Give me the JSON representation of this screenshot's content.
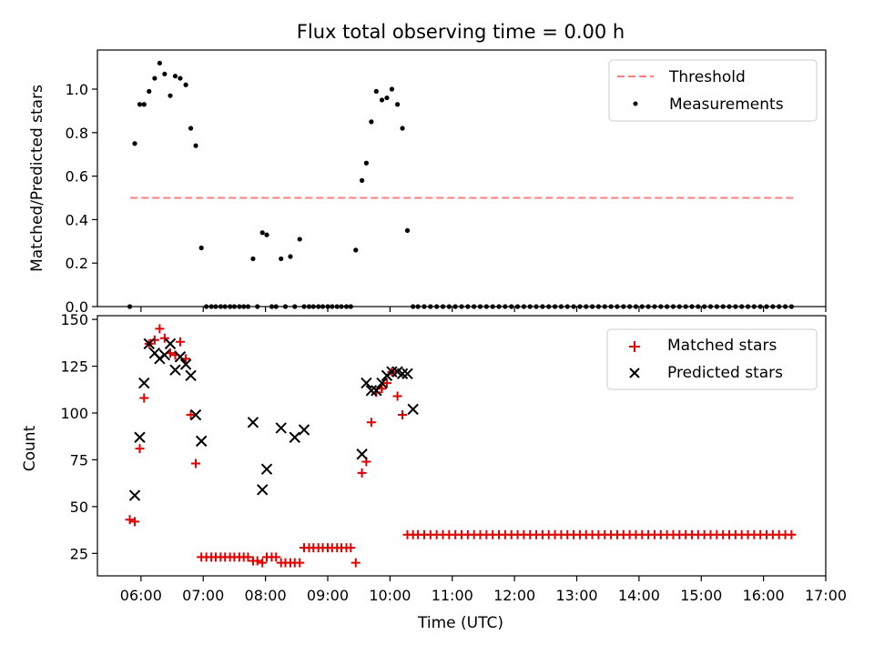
{
  "figure_title": "Flux total observing time = 0.00 h",
  "colors": {
    "threshold": "#ff7f7f",
    "measurement": "#000000",
    "matched": "#e00000",
    "predicted": "#000000"
  },
  "chart_data": [
    {
      "type": "scatter",
      "title": "Flux total observing time = 0.00 h",
      "xlabel": "",
      "ylabel": "Matched/Predicted stars",
      "xlim": [
        5.3,
        17.0
      ],
      "ylim": [
        0.0,
        1.18
      ],
      "yticks": [
        "0.0",
        "0.2",
        "0.4",
        "0.6",
        "0.8",
        "1.0"
      ],
      "legend_position": "top-right",
      "legend": [
        "Threshold",
        "Measurements"
      ],
      "threshold": {
        "name": "Threshold",
        "y": 0.5,
        "x": [
          5.83,
          16.5
        ]
      },
      "series": [
        {
          "name": "Measurements",
          "x": [
            5.82,
            5.9,
            5.98,
            6.05,
            6.13,
            6.22,
            6.3,
            6.38,
            6.47,
            6.55,
            6.63,
            6.72,
            6.8,
            6.88,
            6.97,
            7.05,
            7.13,
            7.2,
            7.28,
            7.35,
            7.43,
            7.5,
            7.58,
            7.65,
            7.72,
            7.8,
            7.87,
            7.95,
            8.02,
            8.1,
            8.17,
            8.25,
            8.32,
            8.4,
            8.47,
            8.55,
            8.62,
            8.7,
            8.77,
            8.85,
            8.92,
            9.0,
            9.07,
            9.15,
            9.22,
            9.3,
            9.37,
            9.45,
            9.55,
            9.62,
            9.7,
            9.78,
            9.87,
            9.95,
            10.03,
            10.12,
            10.2,
            10.28,
            10.37,
            10.45,
            10.55,
            10.65,
            10.75,
            10.85,
            10.95,
            11.05,
            11.15,
            11.25,
            11.35,
            11.45,
            11.55,
            11.65,
            11.75,
            11.85,
            11.95,
            12.05,
            12.15,
            12.25,
            12.35,
            12.45,
            12.55,
            12.65,
            12.75,
            12.85,
            12.95,
            13.05,
            13.15,
            13.25,
            13.35,
            13.45,
            13.55,
            13.65,
            13.75,
            13.85,
            13.95,
            14.05,
            14.15,
            14.25,
            14.35,
            14.45,
            14.55,
            14.65,
            14.75,
            14.85,
            14.95,
            15.05,
            15.15,
            15.25,
            15.35,
            15.45,
            15.55,
            15.65,
            15.75,
            15.85,
            15.95,
            16.05,
            16.15,
            16.25,
            16.35,
            16.45
          ],
          "y": [
            0.0,
            0.75,
            0.93,
            0.93,
            0.99,
            1.05,
            1.12,
            1.07,
            0.97,
            1.06,
            1.05,
            1.02,
            0.82,
            0.74,
            0.27,
            0.0,
            0.0,
            0.0,
            0.0,
            0.0,
            0.0,
            0.0,
            0.0,
            0.0,
            0.0,
            0.22,
            0.0,
            0.34,
            0.33,
            0.0,
            0.0,
            0.22,
            0.0,
            0.23,
            0.0,
            0.31,
            0.0,
            0.0,
            0.0,
            0.0,
            0.0,
            0.0,
            0.0,
            0.0,
            0.0,
            0.0,
            0.0,
            0.26,
            0.58,
            0.66,
            0.85,
            0.99,
            0.95,
            0.96,
            1.0,
            0.93,
            0.82,
            0.35,
            0.0,
            0.0,
            0.0,
            0.0,
            0.0,
            0.0,
            0.0,
            0.0,
            0.0,
            0.0,
            0.0,
            0.0,
            0.0,
            0.0,
            0.0,
            0.0,
            0.0,
            0.0,
            0.0,
            0.0,
            0.0,
            0.0,
            0.0,
            0.0,
            0.0,
            0.0,
            0.0,
            0.0,
            0.0,
            0.0,
            0.0,
            0.0,
            0.0,
            0.0,
            0.0,
            0.0,
            0.0,
            0.0,
            0.0,
            0.0,
            0.0,
            0.0,
            0.0,
            0.0,
            0.0,
            0.0,
            0.0,
            0.0,
            0.0,
            0.0,
            0.0,
            0.0,
            0.0,
            0.0,
            0.0,
            0.0,
            0.0,
            0.0,
            0.0,
            0.0,
            0.0,
            0.0
          ]
        }
      ]
    },
    {
      "type": "scatter",
      "title": "",
      "xlabel": "Time (UTC)",
      "ylabel": "Count",
      "xlim": [
        5.3,
        17.0
      ],
      "ylim": [
        13,
        152
      ],
      "yticks": [
        "25",
        "50",
        "75",
        "100",
        "125",
        "150"
      ],
      "xticks": [
        "06:00",
        "07:00",
        "08:00",
        "09:00",
        "10:00",
        "11:00",
        "12:00",
        "13:00",
        "14:00",
        "15:00",
        "16:00",
        "17:00"
      ],
      "legend_position": "top-right",
      "legend": [
        "Matched stars",
        "Predicted stars"
      ],
      "series": [
        {
          "name": "Matched stars",
          "marker": "plus",
          "x": [
            5.82,
            5.9,
            5.98,
            6.05,
            6.13,
            6.22,
            6.3,
            6.38,
            6.47,
            6.55,
            6.63,
            6.72,
            6.8,
            6.88,
            6.97,
            7.05,
            7.13,
            7.2,
            7.28,
            7.35,
            7.43,
            7.5,
            7.58,
            7.65,
            7.72,
            7.8,
            7.87,
            7.95,
            8.02,
            8.1,
            8.17,
            8.25,
            8.32,
            8.4,
            8.47,
            8.55,
            8.62,
            8.7,
            8.77,
            8.85,
            8.92,
            9.0,
            9.07,
            9.15,
            9.22,
            9.3,
            9.37,
            9.45,
            9.55,
            9.62,
            9.7,
            9.78,
            9.87,
            9.95,
            10.03,
            10.12,
            10.2,
            10.28,
            10.37,
            10.45,
            10.55,
            10.65,
            10.75,
            10.85,
            10.95,
            11.05,
            11.15,
            11.25,
            11.35,
            11.45,
            11.55,
            11.65,
            11.75,
            11.85,
            11.95,
            12.05,
            12.15,
            12.25,
            12.35,
            12.45,
            12.55,
            12.65,
            12.75,
            12.85,
            12.95,
            13.05,
            13.15,
            13.25,
            13.35,
            13.45,
            13.55,
            13.65,
            13.75,
            13.85,
            13.95,
            14.05,
            14.15,
            14.25,
            14.35,
            14.45,
            14.55,
            14.65,
            14.75,
            14.85,
            14.95,
            15.05,
            15.15,
            15.25,
            15.35,
            15.45,
            15.55,
            15.65,
            15.75,
            15.85,
            15.95,
            16.05,
            16.15,
            16.25,
            16.35,
            16.45
          ],
          "y": [
            43,
            42,
            81,
            108,
            137,
            139,
            145,
            140,
            132,
            131,
            138,
            129,
            99,
            73,
            23,
            23,
            23,
            23,
            23,
            23,
            23,
            23,
            23,
            23,
            23,
            21,
            21,
            20,
            23,
            23,
            23,
            20,
            20,
            20,
            20,
            20,
            28,
            28,
            28,
            28,
            28,
            28,
            28,
            28,
            28,
            28,
            28,
            20,
            68,
            74,
            95,
            111,
            113,
            116,
            122,
            109,
            99,
            35,
            35,
            35,
            35,
            35,
            35,
            35,
            35,
            35,
            35,
            35,
            35,
            35,
            35,
            35,
            35,
            35,
            35,
            35,
            35,
            35,
            35,
            35,
            35,
            35,
            35,
            35,
            35,
            35,
            35,
            35,
            35,
            35,
            35,
            35,
            35,
            35,
            35,
            35,
            35,
            35,
            35,
            35,
            35,
            35,
            35,
            35,
            35,
            35,
            35,
            35,
            35,
            35,
            35,
            35,
            35,
            35,
            35,
            35,
            35,
            35,
            35,
            35
          ]
        },
        {
          "name": "Predicted stars",
          "marker": "x",
          "x": [
            5.9,
            5.98,
            6.05,
            6.13,
            6.22,
            6.3,
            6.38,
            6.47,
            6.55,
            6.63,
            6.72,
            6.8,
            6.88,
            6.97,
            7.8,
            7.95,
            8.02,
            8.25,
            8.47,
            8.62,
            9.55,
            9.62,
            9.7,
            9.78,
            9.87,
            9.95,
            10.03,
            10.12,
            10.2,
            10.28,
            10.37
          ],
          "y": [
            56,
            87,
            116,
            137,
            132,
            129,
            131,
            137,
            123,
            130,
            126,
            120,
            99,
            85,
            95,
            59,
            70,
            92,
            87,
            91,
            78,
            116,
            112,
            112,
            116,
            120,
            122,
            122,
            121,
            121,
            102
          ]
        }
      ]
    }
  ]
}
